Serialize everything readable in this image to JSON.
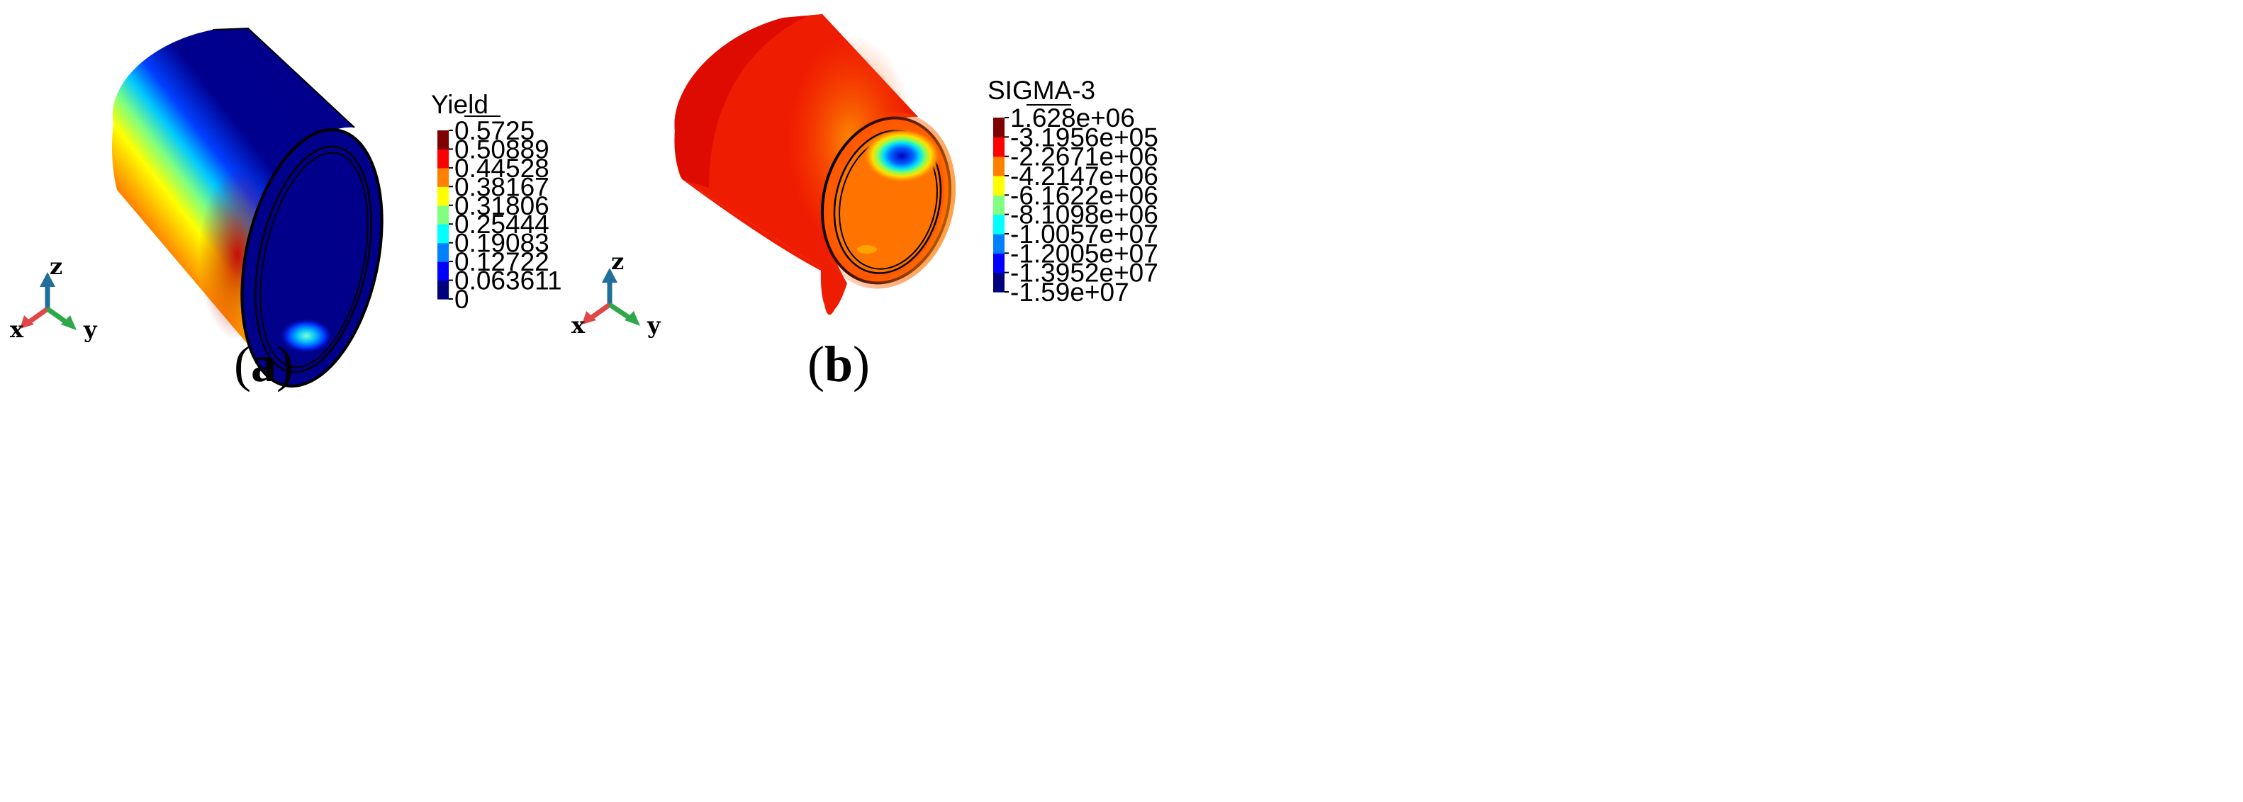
{
  "panels": [
    {
      "label_open": "(",
      "label_letter": "a",
      "label_close": ")",
      "legend": {
        "title": "Yield",
        "ticks": [
          "0.5725",
          "0.50889",
          "0.44528",
          "0.38167",
          "0.31806",
          "0.25444",
          "0.19083",
          "0.12722",
          "0.063611",
          "0"
        ]
      },
      "axes": {
        "z": "z",
        "x": "x",
        "y": "y"
      }
    },
    {
      "label_open": "(",
      "label_letter": "b",
      "label_close": ")",
      "legend": {
        "title": "SIGMA-3",
        "ticks": [
          "1.628e+06",
          "-3.1956e+05",
          "-2.2671e+06",
          "-4.2147e+06",
          "-6.1622e+06",
          "-8.1098e+06",
          "-1.0057e+07",
          "-1.2005e+07",
          "-1.3952e+07",
          "-1.59e+07"
        ]
      },
      "axes": {
        "z": "z",
        "x": "x",
        "y": "y"
      }
    }
  ],
  "colors": {
    "jet": [
      "#00007f",
      "#0000ff",
      "#0080ff",
      "#00ffff",
      "#80ff80",
      "#ffff00",
      "#ff8000",
      "#ff0000",
      "#7f0000"
    ],
    "axis_z": "#1f6f9a",
    "axis_x": "#e04848",
    "axis_y": "#2ea84a"
  }
}
